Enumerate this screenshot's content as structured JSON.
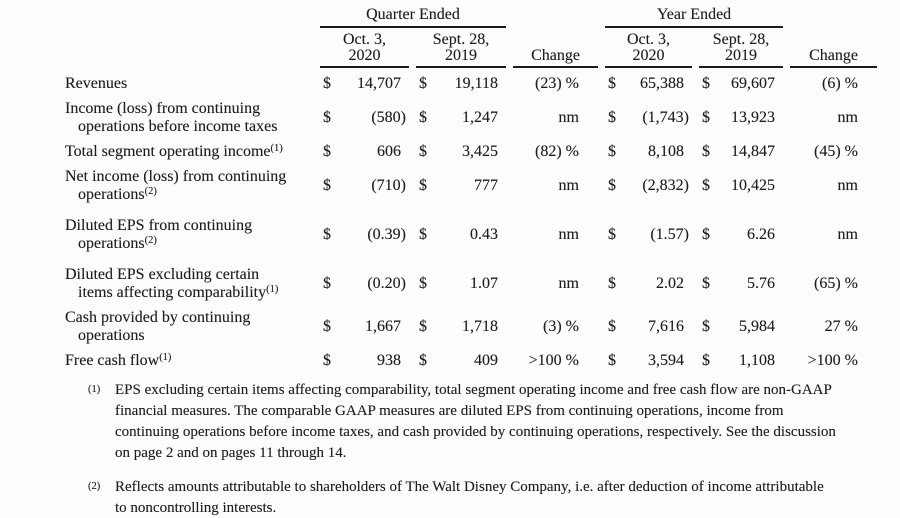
{
  "document": {
    "kind": "financial summary table"
  },
  "table": {
    "currency": "$",
    "groups": {
      "quarter": "Quarter Ended",
      "year": "Year Ended"
    },
    "columns": {
      "period1_line1": "Oct. 3,",
      "period1_line2": "2020",
      "period2_line1": "Sept. 28,",
      "period2_line2": "2019",
      "change": "Change"
    },
    "rows": [
      {
        "label": [
          "Revenues"
        ],
        "sup": "",
        "q2020": "14,707",
        "q2019": "19,118",
        "q_change": "(23) %",
        "y2020": "65,388",
        "y2019": "69,607",
        "y_change": "(6) %",
        "spaced": false
      },
      {
        "label": [
          "Income (loss) from continuing",
          "operations before income taxes"
        ],
        "sup": "",
        "q2020": "(580)",
        "q2019": "1,247",
        "q_change": "nm",
        "y2020": "(1,743)",
        "y2019": "13,923",
        "y_change": "nm",
        "spaced": false
      },
      {
        "label": [
          "Total segment operating income"
        ],
        "sup": "(1)",
        "q2020": "606",
        "q2019": "3,425",
        "q_change": "(82) %",
        "y2020": "8,108",
        "y2019": "14,847",
        "y_change": "(45) %",
        "spaced": false
      },
      {
        "label": [
          "Net income (loss) from continuing",
          "operations"
        ],
        "sup": "(2)",
        "q2020": "(710)",
        "q2019": "777",
        "q_change": "nm",
        "y2020": "(2,832)",
        "y2019": "10,425",
        "y_change": "nm",
        "spaced": false
      },
      {
        "label": [
          "Diluted EPS from continuing",
          "operations"
        ],
        "sup": "(2)",
        "q2020": "(0.39)",
        "q2019": "0.43",
        "q_change": "nm",
        "y2020": "(1.57)",
        "y2019": "6.26",
        "y_change": "nm",
        "spaced": true
      },
      {
        "label": [
          "Diluted EPS excluding certain",
          "items affecting comparability"
        ],
        "sup": "(1)",
        "q2020": "(0.20)",
        "q2019": "1.07",
        "q_change": "nm",
        "y2020": "2.02",
        "y2019": "5.76",
        "y_change": "(65) %",
        "spaced": true
      },
      {
        "label": [
          "Cash provided by continuing",
          "operations"
        ],
        "sup": "",
        "q2020": "1,667",
        "q2019": "1,718",
        "q_change": "(3) %",
        "y2020": "7,616",
        "y2019": "5,984",
        "y_change": "27 %",
        "spaced": false
      },
      {
        "label": [
          "Free cash flow"
        ],
        "sup": "(1)",
        "q2020": "938",
        "q2019": "409",
        "q_change": ">100 %",
        "y2020": "3,594",
        "y2019": "1,108",
        "y_change": ">100 %",
        "spaced": false
      }
    ]
  },
  "footnotes": [
    {
      "marker": "(1)",
      "lines": [
        "EPS excluding certain items affecting comparability, total segment operating income and free cash flow are non-GAAP",
        "financial measures. The comparable GAAP measures are diluted EPS from continuing operations, income from",
        "continuing operations before income taxes, and cash provided by continuing operations, respectively. See the discussion",
        "on page 2 and on pages 11 through 14."
      ]
    },
    {
      "marker": "(2)",
      "lines": [
        "Reflects amounts attributable to shareholders of The Walt Disney Company, i.e. after deduction of income attributable",
        "to noncontrolling interests."
      ]
    }
  ],
  "colors": {
    "text": "#1d1d1d",
    "rule": "#1b1b1b",
    "background": "#fdfdfd"
  }
}
